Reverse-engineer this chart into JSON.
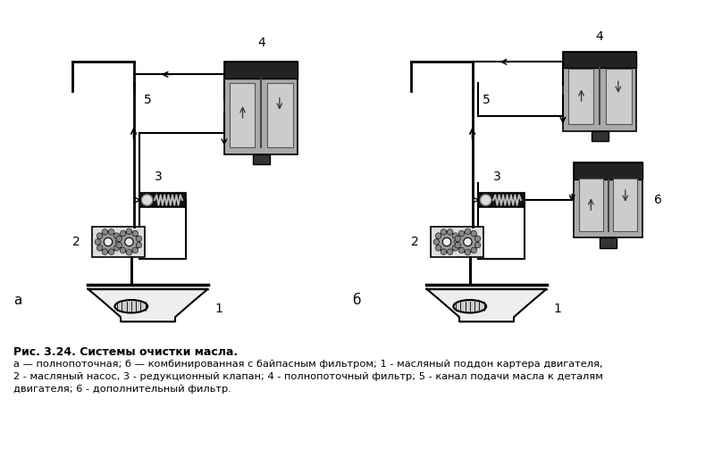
{
  "bg_color": "#ffffff",
  "fig_width": 8.08,
  "fig_height": 5.12,
  "title_bold": "Рис. 3.24. Системы очистки масла.",
  "caption_line1": "а — полнопоточная; б — комбинированная с байпасным фильтром; 1 - масляный поддон картера двигателя,",
  "caption_line2": "2 - масляный насос, 3 - редукционный клапан; 4 - полнопоточный фильтр; 5 - канал подачи масла к деталям",
  "caption_line3": "двигателя; 6 - дополнительный фильтр.",
  "label_a": "а",
  "label_b": "б",
  "lc": "#000000"
}
